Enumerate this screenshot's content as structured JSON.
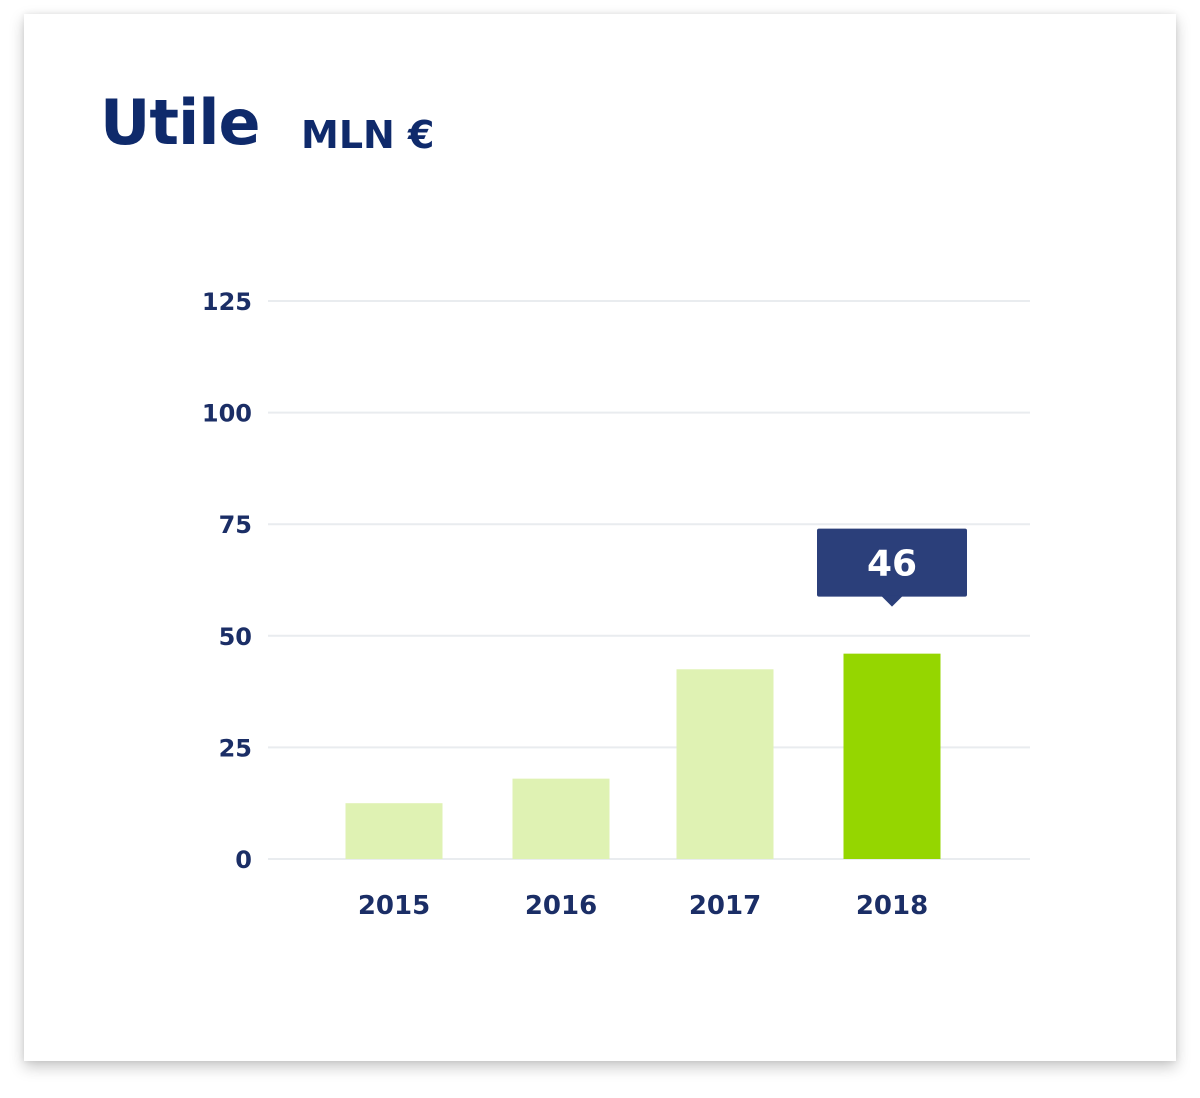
{
  "header": {
    "title": "Utile",
    "unit": "MLN €"
  },
  "colors": {
    "title": "#0f2a6b",
    "bar_default": "#dff2b3",
    "bar_highlight": "#95d600",
    "callout_bg": "#2b3f7a",
    "gridline": "#e9ecef"
  },
  "chart_data": {
    "type": "bar",
    "title": "Utile",
    "subtitle": "MLN €",
    "categories": [
      "2015",
      "2016",
      "2017",
      "2018"
    ],
    "values": [
      12.5,
      18,
      42.5,
      46
    ],
    "highlight_index": 3,
    "callout": {
      "category": "2018",
      "label": "46"
    },
    "ylim": [
      0,
      125
    ],
    "yticks": [
      0,
      25,
      50,
      75,
      100,
      125
    ],
    "grid": true,
    "legend": "none"
  }
}
